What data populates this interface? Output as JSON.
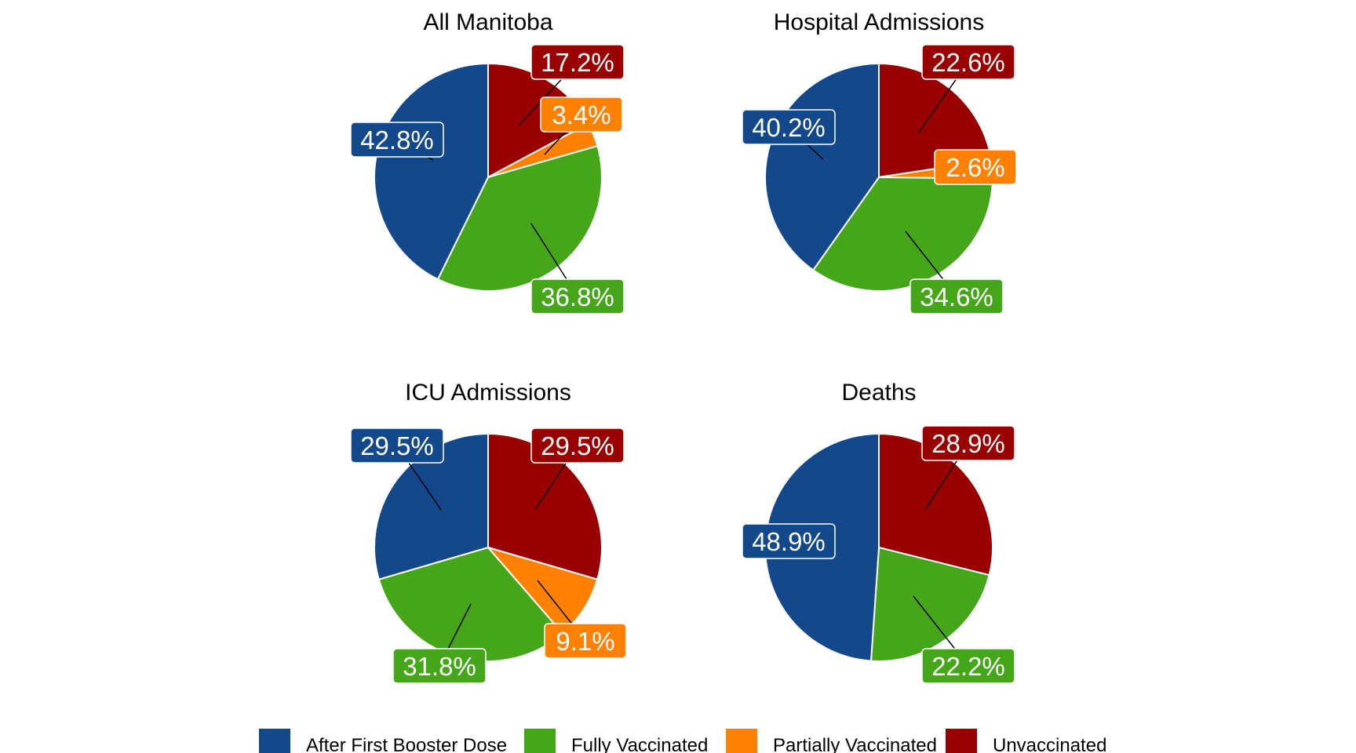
{
  "colors": {
    "After First Booster Dose": "#13488B",
    "Fully Vaccinated": "#46A61A",
    "Partially Vaccinated": "#FF8103",
    "Unvaccinated": "#990000"
  },
  "legend": {
    "items": [
      "After First Booster Dose",
      "Fully Vaccinated",
      "Partially Vaccinated",
      "Unvaccinated"
    ]
  },
  "chart_data": [
    {
      "type": "pie",
      "title": "All Manitoba",
      "slices": [
        {
          "category": "Unvaccinated",
          "value": 17.2,
          "label": "17.2%"
        },
        {
          "category": "Partially Vaccinated",
          "value": 3.4,
          "label": "3.4%"
        },
        {
          "category": "Fully Vaccinated",
          "value": 36.8,
          "label": "36.8%"
        },
        {
          "category": "After First Booster Dose",
          "value": 42.8,
          "label": "42.8%"
        }
      ]
    },
    {
      "type": "pie",
      "title": "Hospital Admissions",
      "slices": [
        {
          "category": "Unvaccinated",
          "value": 22.6,
          "label": "22.6%"
        },
        {
          "category": "Partially Vaccinated",
          "value": 2.6,
          "label": "2.6%"
        },
        {
          "category": "Fully Vaccinated",
          "value": 34.6,
          "label": "34.6%"
        },
        {
          "category": "After First Booster Dose",
          "value": 40.2,
          "label": "40.2%"
        }
      ]
    },
    {
      "type": "pie",
      "title": "ICU Admissions",
      "slices": [
        {
          "category": "Unvaccinated",
          "value": 29.5,
          "label": "29.5%"
        },
        {
          "category": "Partially Vaccinated",
          "value": 9.1,
          "label": "9.1%"
        },
        {
          "category": "Fully Vaccinated",
          "value": 31.8,
          "label": "31.8%"
        },
        {
          "category": "After First Booster Dose",
          "value": 29.5,
          "label": "29.5%"
        }
      ]
    },
    {
      "type": "pie",
      "title": "Deaths",
      "slices": [
        {
          "category": "Unvaccinated",
          "value": 28.9,
          "label": "28.9%"
        },
        {
          "category": "Fully Vaccinated",
          "value": 22.2,
          "label": "22.2%"
        },
        {
          "category": "After First Booster Dose",
          "value": 48.9,
          "label": "48.9%"
        }
      ]
    }
  ]
}
